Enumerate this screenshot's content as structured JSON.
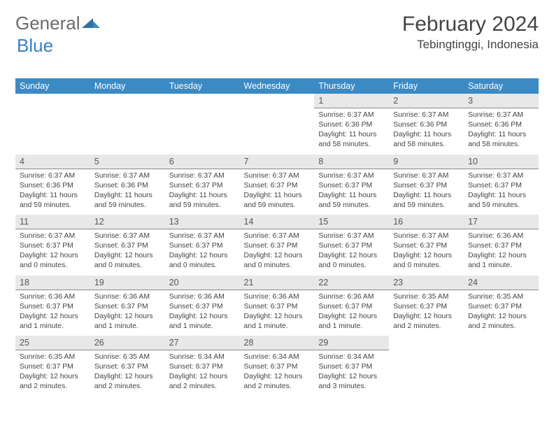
{
  "logo": {
    "part1": "General",
    "part2": "Blue"
  },
  "title": "February 2024",
  "location": "Tebingtinggi, Indonesia",
  "weekdays": [
    "Sunday",
    "Monday",
    "Tuesday",
    "Wednesday",
    "Thursday",
    "Friday",
    "Saturday"
  ],
  "colors": {
    "header_bg": "#3b8ac4",
    "daynum_bg": "#e8e8e8",
    "text": "#444444",
    "logo_blue": "#3b7fc4"
  },
  "weeks": [
    [
      null,
      null,
      null,
      null,
      {
        "n": "1",
        "sr": "Sunrise: 6:37 AM",
        "ss": "Sunset: 6:36 PM",
        "d1": "Daylight: 11 hours",
        "d2": "and 58 minutes."
      },
      {
        "n": "2",
        "sr": "Sunrise: 6:37 AM",
        "ss": "Sunset: 6:36 PM",
        "d1": "Daylight: 11 hours",
        "d2": "and 58 minutes."
      },
      {
        "n": "3",
        "sr": "Sunrise: 6:37 AM",
        "ss": "Sunset: 6:36 PM",
        "d1": "Daylight: 11 hours",
        "d2": "and 58 minutes."
      }
    ],
    [
      {
        "n": "4",
        "sr": "Sunrise: 6:37 AM",
        "ss": "Sunset: 6:36 PM",
        "d1": "Daylight: 11 hours",
        "d2": "and 59 minutes."
      },
      {
        "n": "5",
        "sr": "Sunrise: 6:37 AM",
        "ss": "Sunset: 6:36 PM",
        "d1": "Daylight: 11 hours",
        "d2": "and 59 minutes."
      },
      {
        "n": "6",
        "sr": "Sunrise: 6:37 AM",
        "ss": "Sunset: 6:37 PM",
        "d1": "Daylight: 11 hours",
        "d2": "and 59 minutes."
      },
      {
        "n": "7",
        "sr": "Sunrise: 6:37 AM",
        "ss": "Sunset: 6:37 PM",
        "d1": "Daylight: 11 hours",
        "d2": "and 59 minutes."
      },
      {
        "n": "8",
        "sr": "Sunrise: 6:37 AM",
        "ss": "Sunset: 6:37 PM",
        "d1": "Daylight: 11 hours",
        "d2": "and 59 minutes."
      },
      {
        "n": "9",
        "sr": "Sunrise: 6:37 AM",
        "ss": "Sunset: 6:37 PM",
        "d1": "Daylight: 11 hours",
        "d2": "and 59 minutes."
      },
      {
        "n": "10",
        "sr": "Sunrise: 6:37 AM",
        "ss": "Sunset: 6:37 PM",
        "d1": "Daylight: 11 hours",
        "d2": "and 59 minutes."
      }
    ],
    [
      {
        "n": "11",
        "sr": "Sunrise: 6:37 AM",
        "ss": "Sunset: 6:37 PM",
        "d1": "Daylight: 12 hours",
        "d2": "and 0 minutes."
      },
      {
        "n": "12",
        "sr": "Sunrise: 6:37 AM",
        "ss": "Sunset: 6:37 PM",
        "d1": "Daylight: 12 hours",
        "d2": "and 0 minutes."
      },
      {
        "n": "13",
        "sr": "Sunrise: 6:37 AM",
        "ss": "Sunset: 6:37 PM",
        "d1": "Daylight: 12 hours",
        "d2": "and 0 minutes."
      },
      {
        "n": "14",
        "sr": "Sunrise: 6:37 AM",
        "ss": "Sunset: 6:37 PM",
        "d1": "Daylight: 12 hours",
        "d2": "and 0 minutes."
      },
      {
        "n": "15",
        "sr": "Sunrise: 6:37 AM",
        "ss": "Sunset: 6:37 PM",
        "d1": "Daylight: 12 hours",
        "d2": "and 0 minutes."
      },
      {
        "n": "16",
        "sr": "Sunrise: 6:37 AM",
        "ss": "Sunset: 6:37 PM",
        "d1": "Daylight: 12 hours",
        "d2": "and 0 minutes."
      },
      {
        "n": "17",
        "sr": "Sunrise: 6:36 AM",
        "ss": "Sunset: 6:37 PM",
        "d1": "Daylight: 12 hours",
        "d2": "and 1 minute."
      }
    ],
    [
      {
        "n": "18",
        "sr": "Sunrise: 6:36 AM",
        "ss": "Sunset: 6:37 PM",
        "d1": "Daylight: 12 hours",
        "d2": "and 1 minute."
      },
      {
        "n": "19",
        "sr": "Sunrise: 6:36 AM",
        "ss": "Sunset: 6:37 PM",
        "d1": "Daylight: 12 hours",
        "d2": "and 1 minute."
      },
      {
        "n": "20",
        "sr": "Sunrise: 6:36 AM",
        "ss": "Sunset: 6:37 PM",
        "d1": "Daylight: 12 hours",
        "d2": "and 1 minute."
      },
      {
        "n": "21",
        "sr": "Sunrise: 6:36 AM",
        "ss": "Sunset: 6:37 PM",
        "d1": "Daylight: 12 hours",
        "d2": "and 1 minute."
      },
      {
        "n": "22",
        "sr": "Sunrise: 6:36 AM",
        "ss": "Sunset: 6:37 PM",
        "d1": "Daylight: 12 hours",
        "d2": "and 1 minute."
      },
      {
        "n": "23",
        "sr": "Sunrise: 6:35 AM",
        "ss": "Sunset: 6:37 PM",
        "d1": "Daylight: 12 hours",
        "d2": "and 2 minutes."
      },
      {
        "n": "24",
        "sr": "Sunrise: 6:35 AM",
        "ss": "Sunset: 6:37 PM",
        "d1": "Daylight: 12 hours",
        "d2": "and 2 minutes."
      }
    ],
    [
      {
        "n": "25",
        "sr": "Sunrise: 6:35 AM",
        "ss": "Sunset: 6:37 PM",
        "d1": "Daylight: 12 hours",
        "d2": "and 2 minutes."
      },
      {
        "n": "26",
        "sr": "Sunrise: 6:35 AM",
        "ss": "Sunset: 6:37 PM",
        "d1": "Daylight: 12 hours",
        "d2": "and 2 minutes."
      },
      {
        "n": "27",
        "sr": "Sunrise: 6:34 AM",
        "ss": "Sunset: 6:37 PM",
        "d1": "Daylight: 12 hours",
        "d2": "and 2 minutes."
      },
      {
        "n": "28",
        "sr": "Sunrise: 6:34 AM",
        "ss": "Sunset: 6:37 PM",
        "d1": "Daylight: 12 hours",
        "d2": "and 2 minutes."
      },
      {
        "n": "29",
        "sr": "Sunrise: 6:34 AM",
        "ss": "Sunset: 6:37 PM",
        "d1": "Daylight: 12 hours",
        "d2": "and 3 minutes."
      },
      null,
      null
    ]
  ]
}
